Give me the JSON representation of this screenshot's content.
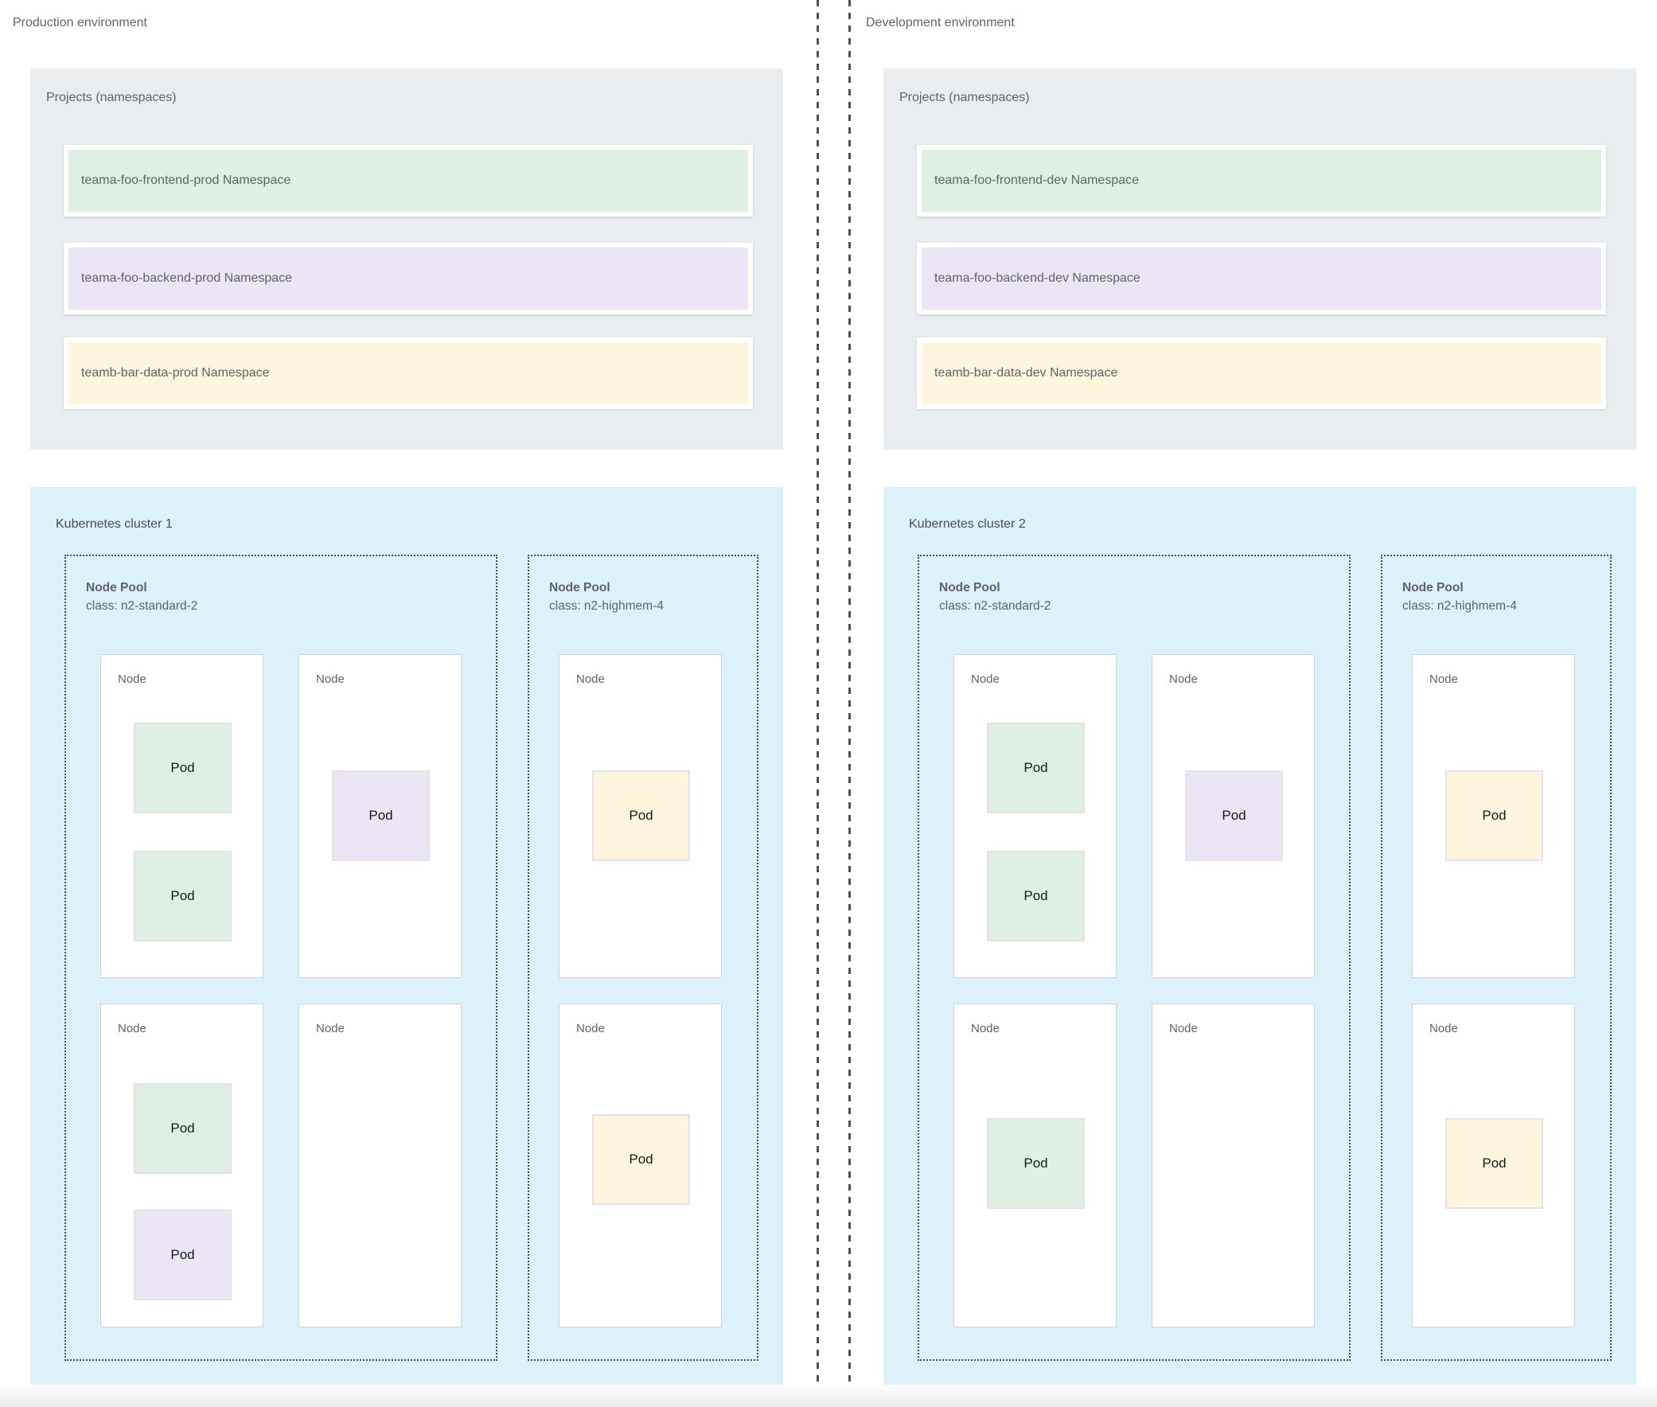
{
  "palette": {
    "page_background": "#ffffff",
    "projects_panel": "#e9edf0",
    "cluster_panel": "#ddf1fb",
    "node_fill": "#ffffff",
    "label_gray": "#5f6368",
    "pod_text": "#17181a",
    "divider_dash": "#4f4f4f",
    "pool_dash": "#4b4b4b",
    "namespace_green": "#def0e4",
    "namespace_purple": "#ebe5f6",
    "namespace_yellow": "#fdf5dd"
  },
  "environments": {
    "production": {
      "title": "Production environment",
      "projects": {
        "title": "Projects (namespaces)",
        "namespaces": [
          {
            "label": "teama-foo-frontend-prod Namespace",
            "color": "#def0e4"
          },
          {
            "label": "teama-foo-backend-prod Namespace",
            "color": "#ebe5f6"
          },
          {
            "label": "teamb-bar-data-prod Namespace",
            "color": "#fdf5dd"
          }
        ]
      },
      "cluster": {
        "title": "Kubernetes cluster 1",
        "pools": [
          {
            "title": "Node Pool",
            "machine_class": "class: n2-standard-2",
            "nodes": [
              {
                "label": "Node",
                "pods": [
                  {
                    "label": "Pod",
                    "color": "#def0e4"
                  },
                  {
                    "label": "Pod",
                    "color": "#def0e4"
                  }
                ]
              },
              {
                "label": "Node",
                "pods": [
                  {
                    "label": "Pod",
                    "color": "#ebe5f6"
                  }
                ]
              },
              {
                "label": "Node",
                "pods": [
                  {
                    "label": "Pod",
                    "color": "#def0e4"
                  },
                  {
                    "label": "Pod",
                    "color": "#ebe5f6"
                  }
                ]
              },
              {
                "label": "Node",
                "pods": []
              }
            ]
          },
          {
            "title": "Node Pool",
            "machine_class": "class: n2-highmem-4",
            "nodes": [
              {
                "label": "Node",
                "pods": [
                  {
                    "label": "Pod",
                    "color": "#fdf5dd"
                  }
                ]
              },
              {
                "label": "Node",
                "pods": [
                  {
                    "label": "Pod",
                    "color": "#fdf5dd"
                  }
                ]
              }
            ]
          }
        ]
      }
    },
    "development": {
      "title": "Development environment",
      "projects": {
        "title": "Projects (namespaces)",
        "namespaces": [
          {
            "label": "teama-foo-frontend-dev Namespace",
            "color": "#def0e4"
          },
          {
            "label": "teama-foo-backend-dev Namespace",
            "color": "#ebe5f6"
          },
          {
            "label": "teamb-bar-data-dev Namespace",
            "color": "#fdf5dd"
          }
        ]
      },
      "cluster": {
        "title": "Kubernetes cluster 2",
        "pools": [
          {
            "title": "Node Pool",
            "machine_class": "class: n2-standard-2",
            "nodes": [
              {
                "label": "Node",
                "pods": [
                  {
                    "label": "Pod",
                    "color": "#def0e4"
                  },
                  {
                    "label": "Pod",
                    "color": "#def0e4"
                  }
                ]
              },
              {
                "label": "Node",
                "pods": [
                  {
                    "label": "Pod",
                    "color": "#ebe5f6"
                  }
                ]
              },
              {
                "label": "Node",
                "pods": [
                  {
                    "label": "Pod",
                    "color": "#def0e4"
                  }
                ]
              },
              {
                "label": "Node",
                "pods": []
              }
            ]
          },
          {
            "title": "Node Pool",
            "machine_class": "class: n2-highmem-4",
            "nodes": [
              {
                "label": "Node",
                "pods": [
                  {
                    "label": "Pod",
                    "color": "#fdf5dd"
                  }
                ]
              },
              {
                "label": "Node",
                "pods": [
                  {
                    "label": "Pod",
                    "color": "#fdf5dd"
                  }
                ]
              }
            ]
          }
        ]
      }
    }
  }
}
